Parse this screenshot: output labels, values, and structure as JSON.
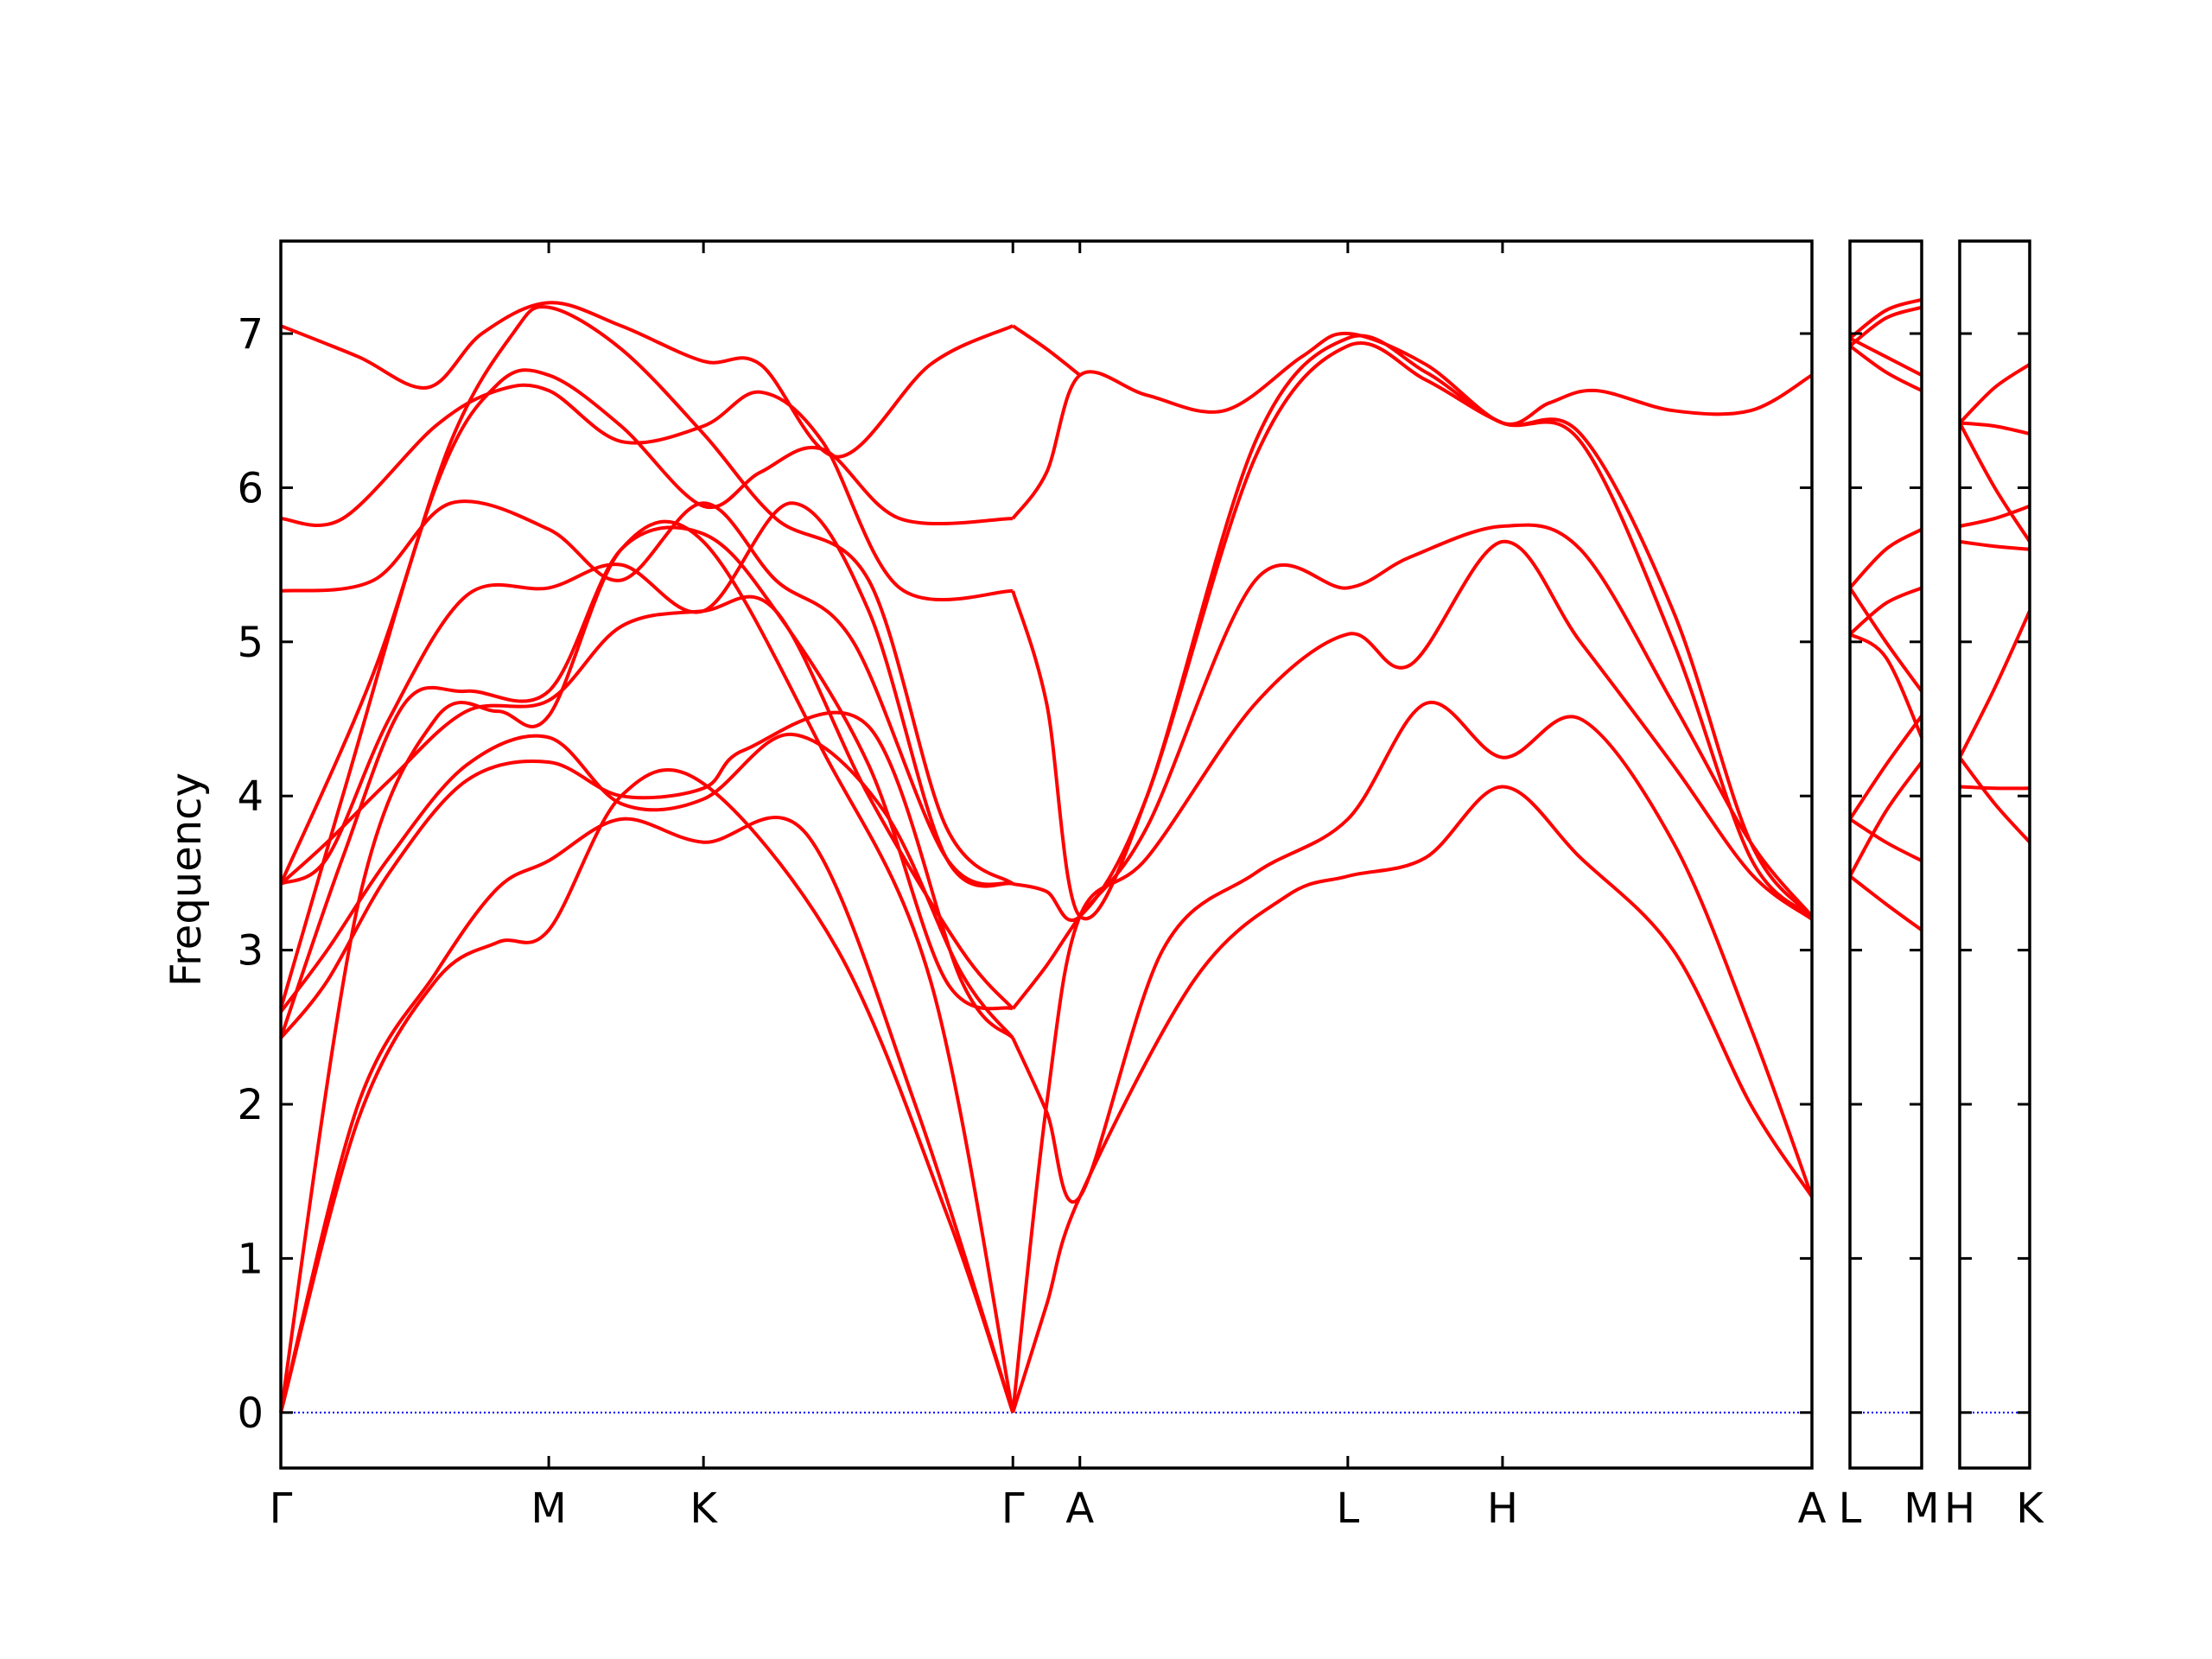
{
  "chart_data": {
    "type": "line",
    "title": "",
    "ylabel": "Frequency",
    "ylim": [
      -0.36,
      7.6
    ],
    "yticks": [
      "0",
      "1",
      "2",
      "3",
      "4",
      "5",
      "6",
      "7"
    ],
    "grid": false,
    "legend": "none",
    "colors": {
      "bands": "#ff0000",
      "zero_line": "#0000ff",
      "axes": "#000000"
    },
    "panels": [
      {
        "path": [
          "Γ",
          "M",
          "K",
          "Γ",
          "A",
          "L",
          "H",
          "A"
        ],
        "kpoints": [
          0,
          1.732,
          2.732,
          4.732,
          5.165,
          6.897,
          7.897,
          9.897
        ],
        "bands": [
          {
            "x": [
              0,
              0.5,
              1.0,
              1.4,
              1.732,
              2.2,
              2.732,
              3.6,
              4.3,
              4.732
            ],
            "y": [
              0,
              1.9,
              2.8,
              3.05,
              3.13,
              4.0,
              4.08,
              3.0,
              1.3,
              0
            ]
          },
          {
            "x": [
              0,
              0.5,
              1.0,
              1.4,
              1.732,
              2.2,
              2.732,
              3.4,
              4.1,
              4.732
            ],
            "y": [
              0,
              2.0,
              2.85,
              3.4,
              3.58,
              3.85,
              3.7,
              3.75,
              2.0,
              0
            ]
          },
          {
            "x": [
              0,
              0.5,
              1.0,
              1.4,
              1.732,
              2.2,
              2.732,
              3.5,
              4.2,
              4.732
            ],
            "y": [
              0,
              3.3,
              4.5,
              4.55,
              4.52,
              5.6,
              5.65,
              4.3,
              2.8,
              0
            ]
          },
          {
            "x": [
              0,
              0.3,
              0.7,
              1.2,
              1.732,
              2.2,
              2.732,
              3.0,
              3.8,
              4.4,
              4.732
            ],
            "y": [
              2.43,
              2.8,
              3.5,
              4.1,
              4.22,
              4.0,
              4.05,
              4.3,
              4.45,
              2.8,
              2.43
            ]
          },
          {
            "x": [
              0,
              0.3,
              0.7,
              1.2,
              1.732,
              2.2,
              2.732,
              3.3,
              3.9,
              4.4,
              4.732
            ],
            "y": [
              2.6,
              3.0,
              3.6,
              4.2,
              4.38,
              3.95,
              3.98,
              4.4,
              3.9,
              2.85,
              2.43
            ]
          },
          {
            "x": [
              0,
              0.3,
              0.7,
              1.2,
              1.732,
              2.2,
              2.732,
              3.2,
              3.8,
              4.4,
              4.732
            ],
            "y": [
              3.43,
              3.7,
              4.1,
              4.55,
              4.62,
              5.1,
              5.2,
              5.2,
              4.0,
              3.0,
              2.62
            ]
          },
          {
            "x": [
              0,
              0.4,
              0.8,
              1.2,
              1.732,
              2.2,
              2.732,
              3.2,
              3.8,
              4.3,
              4.732
            ],
            "y": [
              2.43,
              3.6,
              4.6,
              4.68,
              4.68,
              5.6,
              5.7,
              5.2,
              4.2,
              2.8,
              2.62
            ]
          },
          {
            "x": [
              0,
              0.3,
              0.7,
              1.2,
              1.732,
              2.2,
              2.732,
              3.3,
              3.8,
              4.3,
              4.732
            ],
            "y": [
              3.43,
              3.6,
              4.5,
              5.3,
              5.35,
              5.5,
              5.2,
              5.9,
              5.2,
              3.6,
              3.43
            ]
          },
          {
            "x": [
              0,
              0.6,
              1.1,
              1.732,
              2.2,
              2.732,
              3.2,
              3.7,
              4.3,
              4.732
            ],
            "y": [
              5.33,
              5.4,
              5.9,
              5.73,
              5.4,
              5.9,
              5.4,
              5.0,
              3.6,
              3.43
            ]
          },
          {
            "x": [
              0,
              0.4,
              1.0,
              1.4,
              1.732,
              2.2,
              2.732,
              3.1,
              3.5,
              4.0,
              4.732
            ],
            "y": [
              5.8,
              5.8,
              6.4,
              6.63,
              6.63,
              6.3,
              6.4,
              6.62,
              6.3,
              5.35,
              5.33
            ]
          },
          {
            "x": [
              0,
              0.4,
              1.0,
              1.4,
              1.732,
              2.2,
              2.732,
              3.1,
              3.5,
              4.0,
              4.732
            ],
            "y": [
              2.62,
              4.0,
              6.0,
              6.67,
              6.73,
              6.4,
              5.88,
              6.1,
              6.25,
              5.8,
              5.8
            ]
          },
          {
            "x": [
              0,
              0.5,
              0.95,
              1.3,
              1.732,
              2.2,
              2.732,
              3.1,
              3.6,
              4.2,
              4.732
            ],
            "y": [
              7.05,
              6.85,
              6.65,
              7.0,
              7.2,
              7.05,
              6.82,
              6.8,
              6.2,
              6.8,
              7.05
            ]
          },
          {
            "x": [
              0,
              0.6,
              1.1,
              1.5,
              1.732,
              2.2,
              2.732,
              3.2,
              3.8,
              4.3,
              4.732
            ],
            "y": [
              3.43,
              4.8,
              6.3,
              7.0,
              7.17,
              6.9,
              6.35,
              5.8,
              5.4,
              3.8,
              3.43
            ]
          },
          {
            "x": [
              4.732,
              4.95,
              5.165,
              5.9,
              6.5,
              6.897,
              7.4,
              7.897,
              8.4,
              9.0,
              9.5,
              9.897
            ],
            "y": [
              0,
              0.7,
              1.4,
              2.8,
              3.35,
              3.48,
              3.6,
              4.06,
              3.6,
              3.0,
              2.0,
              1.4
            ]
          },
          {
            "x": [
              4.732,
              4.95,
              5.165,
              5.7,
              6.3,
              6.897,
              7.4,
              7.897,
              8.4,
              9.0,
              9.5,
              9.897
            ],
            "y": [
              2.43,
              1.95,
              1.4,
              3.0,
              3.5,
              3.85,
              4.6,
              4.25,
              4.5,
              3.7,
              2.5,
              1.4
            ]
          },
          {
            "x": [
              4.732,
              4.95,
              5.165,
              5.6,
              6.3,
              6.897,
              7.3,
              7.897,
              8.4,
              9.0,
              9.5,
              9.897
            ],
            "y": [
              0,
              2.0,
              3.22,
              3.6,
              4.6,
              5.05,
              4.85,
              5.65,
              5.0,
              4.2,
              3.5,
              3.2
            ]
          },
          {
            "x": [
              4.732,
              4.95,
              5.165,
              5.6,
              6.3,
              6.897,
              7.3,
              7.897,
              8.4,
              9.0,
              9.5,
              9.897
            ],
            "y": [
              2.62,
              2.9,
              3.22,
              3.8,
              5.4,
              5.35,
              5.55,
              5.75,
              5.6,
              4.6,
              3.7,
              3.22
            ]
          },
          {
            "x": [
              4.732,
              4.95,
              5.165,
              5.6,
              6.3,
              6.897,
              7.4,
              7.897,
              8.4,
              9.0,
              9.5,
              9.897
            ],
            "y": [
              3.43,
              3.38,
              3.22,
              4.0,
              6.2,
              6.92,
              6.7,
              6.42,
              6.3,
              5.0,
              3.6,
              3.22
            ]
          },
          {
            "x": [
              4.732,
              4.95,
              5.165,
              5.6,
              6.3,
              6.897,
              7.4,
              7.897,
              8.4,
              9.0,
              9.5,
              9.897
            ],
            "y": [
              5.33,
              4.6,
              3.22,
              4.0,
              6.3,
              6.97,
              6.75,
              6.42,
              6.35,
              5.2,
              3.7,
              3.22
            ]
          },
          {
            "x": [
              4.732,
              4.95,
              5.165,
              5.6,
              6.1,
              6.6,
              6.897,
              7.4,
              7.897,
              8.2,
              8.5,
              9.0,
              9.5,
              9.897
            ],
            "y": [
              5.8,
              6.1,
              6.73,
              6.6,
              6.5,
              6.85,
              7.0,
              6.8,
              6.42,
              6.55,
              6.63,
              6.5,
              6.5,
              6.73
            ]
          },
          {
            "x": [
              4.732,
              4.95,
              5.165
            ],
            "y": [
              7.05,
              6.9,
              6.73
            ]
          }
        ]
      },
      {
        "path": [
          "L",
          "M"
        ],
        "kpoints": [
          0,
          1
        ],
        "bands": [
          {
            "x": [
              0,
              0.5,
              1
            ],
            "y": [
              3.48,
              3.3,
              3.13
            ]
          },
          {
            "x": [
              0,
              0.5,
              1
            ],
            "y": [
              3.85,
              3.7,
              3.58
            ]
          },
          {
            "x": [
              0,
              0.5,
              1
            ],
            "y": [
              3.48,
              3.9,
              4.22
            ]
          },
          {
            "x": [
              0,
              0.5,
              1
            ],
            "y": [
              3.85,
              4.2,
              4.52
            ]
          },
          {
            "x": [
              0,
              0.5,
              1
            ],
            "y": [
              5.05,
              4.9,
              4.38
            ]
          },
          {
            "x": [
              0,
              0.5,
              1
            ],
            "y": [
              5.35,
              5.0,
              4.68
            ]
          },
          {
            "x": [
              0,
              0.5,
              1
            ],
            "y": [
              5.05,
              5.25,
              5.35
            ]
          },
          {
            "x": [
              0,
              0.5,
              1
            ],
            "y": [
              5.35,
              5.6,
              5.73
            ]
          },
          {
            "x": [
              0,
              0.5,
              1
            ],
            "y": [
              6.92,
              6.75,
              6.63
            ]
          },
          {
            "x": [
              0,
              0.5,
              1
            ],
            "y": [
              6.97,
              6.85,
              6.73
            ]
          },
          {
            "x": [
              0,
              0.5,
              1
            ],
            "y": [
              6.92,
              7.1,
              7.17
            ]
          },
          {
            "x": [
              0,
              0.5,
              1
            ],
            "y": [
              6.97,
              7.15,
              7.22
            ]
          }
        ]
      },
      {
        "path": [
          "H",
          "K"
        ],
        "kpoints": [
          0,
          1
        ],
        "bands": [
          {
            "x": [
              0,
              0.5,
              1
            ],
            "y": [
              4.06,
              4.05,
              4.05
            ]
          },
          {
            "x": [
              0,
              0.5,
              1
            ],
            "y": [
              4.25,
              3.95,
              3.7
            ]
          },
          {
            "x": [
              0,
              0.5,
              1
            ],
            "y": [
              4.25,
              4.7,
              5.2
            ]
          },
          {
            "x": [
              0,
              0.5,
              1
            ],
            "y": [
              5.65,
              5.62,
              5.6
            ]
          },
          {
            "x": [
              0,
              0.5,
              1
            ],
            "y": [
              5.75,
              5.8,
              5.88
            ]
          },
          {
            "x": [
              0,
              0.5,
              1
            ],
            "y": [
              6.42,
              6.4,
              6.35
            ]
          },
          {
            "x": [
              0,
              0.5,
              1
            ],
            "y": [
              6.42,
              6.0,
              5.65
            ]
          },
          {
            "x": [
              0,
              0.5,
              1
            ],
            "y": [
              6.42,
              6.65,
              6.8
            ]
          }
        ]
      }
    ]
  }
}
